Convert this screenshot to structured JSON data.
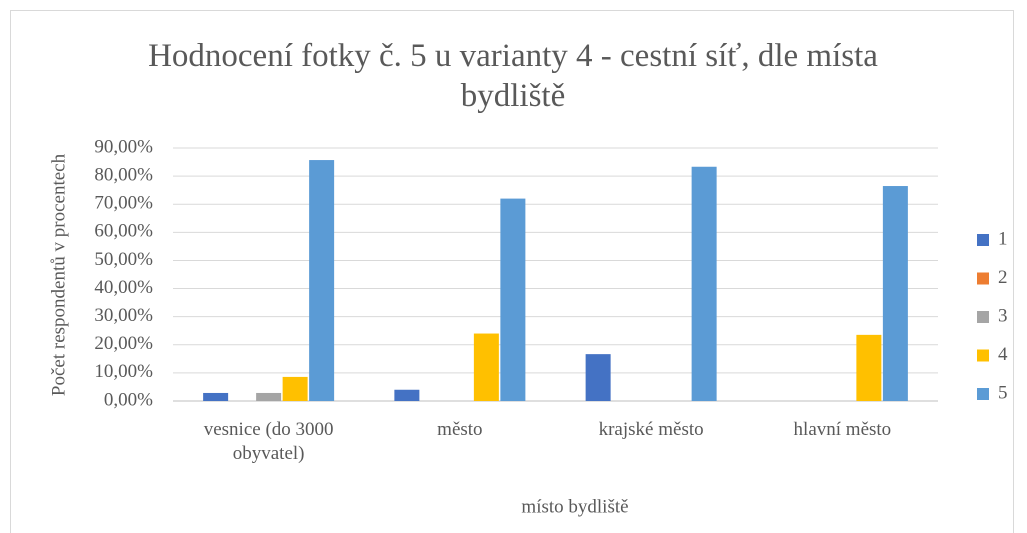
{
  "chart_data": {
    "type": "bar",
    "title": "Hodnocení fotky č. 5 u varianty 4 - cestní síť, dle místa bydliště",
    "x_label": "místo bydliště",
    "y_label": "Počet respondentů v procentech",
    "categories": [
      "vesnice (do 3000 obyvatel)",
      "město",
      "krajské město",
      "hlavní město"
    ],
    "series": [
      {
        "name": "1",
        "color": "#4472c4",
        "values": [
          2.86,
          4.0,
          16.67,
          0
        ]
      },
      {
        "name": "2",
        "color": "#ed7d31",
        "values": [
          0,
          0,
          0,
          0
        ]
      },
      {
        "name": "3",
        "color": "#a5a5a5",
        "values": [
          2.86,
          0,
          0,
          0
        ]
      },
      {
        "name": "4",
        "color": "#ffc000",
        "values": [
          8.57,
          24.0,
          0,
          23.53
        ]
      },
      {
        "name": "5",
        "color": "#5b9bd5",
        "values": [
          85.71,
          72.0,
          83.33,
          76.47
        ]
      }
    ],
    "ylim": [
      0,
      90
    ],
    "yticks": [
      {
        "value": 0,
        "label": "0,00%"
      },
      {
        "value": 10,
        "label": "10,00%"
      },
      {
        "value": 20,
        "label": "20,00%"
      },
      {
        "value": 30,
        "label": "30,00%"
      },
      {
        "value": 40,
        "label": "40,00%"
      },
      {
        "value": 50,
        "label": "50,00%"
      },
      {
        "value": 60,
        "label": "60,00%"
      },
      {
        "value": 70,
        "label": "70,00%"
      },
      {
        "value": 80,
        "label": "80,00%"
      },
      {
        "value": 90,
        "label": "90,00%"
      }
    ],
    "grid": true,
    "legend": "right"
  }
}
